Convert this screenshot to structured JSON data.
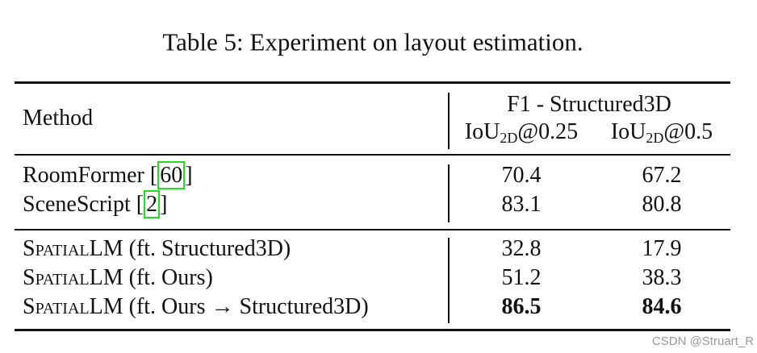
{
  "title": "Table 5: Experiment on layout estimation.",
  "table": {
    "header": {
      "method": "Method",
      "group": "F1 - Structured3D",
      "columns": [
        {
          "base": "IoU",
          "sub": "2D",
          "suffix": "@0.25"
        },
        {
          "base": "IoU",
          "sub": "2D",
          "suffix": "@0.5"
        }
      ]
    },
    "cite_brackets": [
      "[",
      "]"
    ],
    "sections": [
      [
        {
          "name": "RoomFormer ",
          "cite": "60",
          "values": [
            70.4,
            67.2
          ],
          "bold": [
            false,
            false
          ]
        },
        {
          "name": "SceneScript ",
          "cite": "2",
          "values": [
            83.1,
            80.8
          ],
          "bold": [
            false,
            false
          ]
        }
      ],
      [
        {
          "prefix": "Spatial",
          "name": "LM (ft. Structured3D)",
          "values": [
            32.8,
            17.9
          ],
          "bold": [
            false,
            false
          ]
        },
        {
          "prefix": "Spatial",
          "name": "LM (ft. Ours)",
          "values": [
            51.2,
            38.3
          ],
          "bold": [
            false,
            false
          ]
        },
        {
          "prefix": "Spatial",
          "name": "LM (ft. Ours → Structured3D)",
          "values": [
            86.5,
            84.6
          ],
          "bold": [
            true,
            true
          ]
        }
      ]
    ]
  },
  "watermark": "CSDN @Struart_R"
}
